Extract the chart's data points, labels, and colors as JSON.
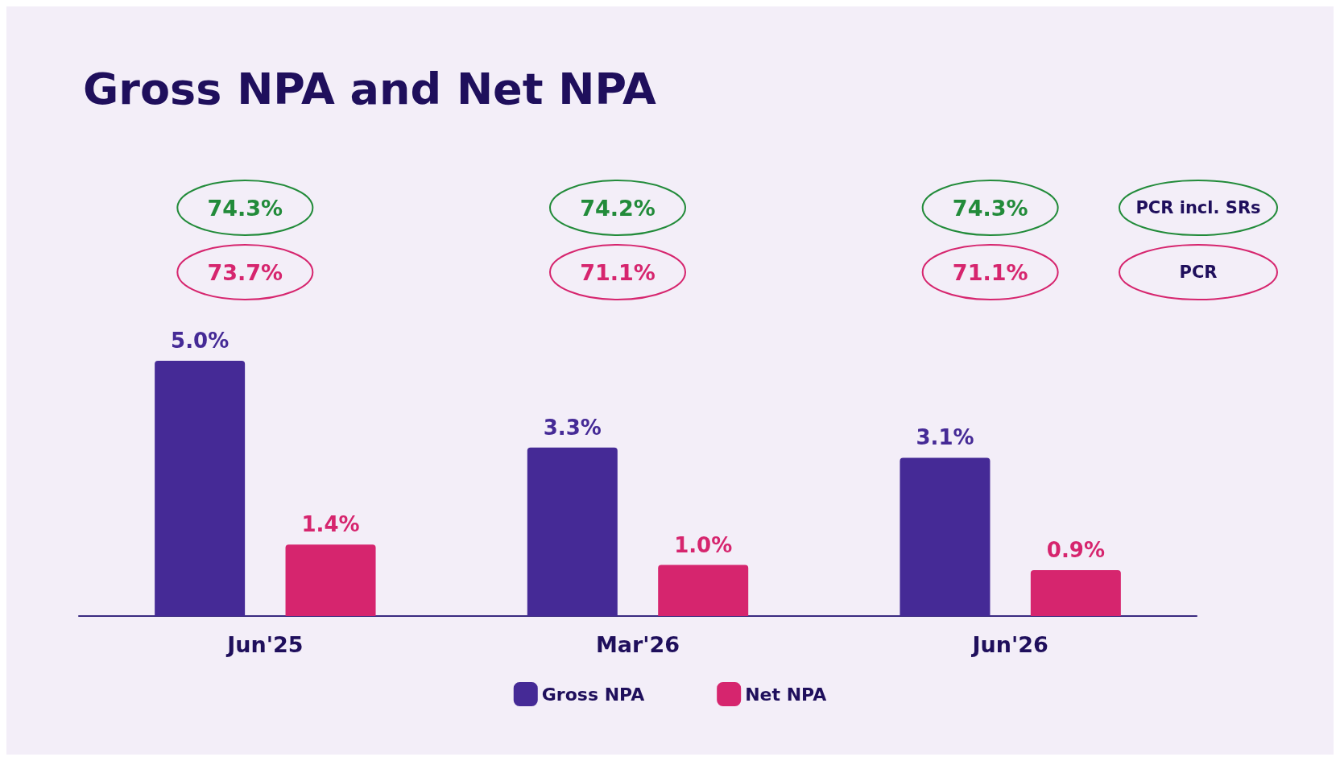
{
  "chart_data": {
    "type": "bar",
    "title": "Gross NPA and Net NPA",
    "categories": [
      "Jun'25",
      "Mar'26",
      "Jun'26"
    ],
    "series": [
      {
        "name": "Gross NPA",
        "color": "#452a96",
        "values": [
          5.0,
          3.3,
          3.1
        ],
        "value_labels": [
          "5.0%",
          "3.3%",
          "3.1%"
        ]
      },
      {
        "name": "Net NPA",
        "color": "#d6256e",
        "values": [
          1.4,
          1.0,
          0.9
        ],
        "value_labels": [
          "1.4%",
          "1.0%",
          "0.9%"
        ]
      }
    ],
    "legend": "bottom",
    "grid": false,
    "annotations": [
      "74.3%",
      "73.7%",
      "74.2%",
      "71.1%",
      "74.3%",
      "71.1%",
      "PCR incl. SRs",
      "PCR"
    ]
  }
}
